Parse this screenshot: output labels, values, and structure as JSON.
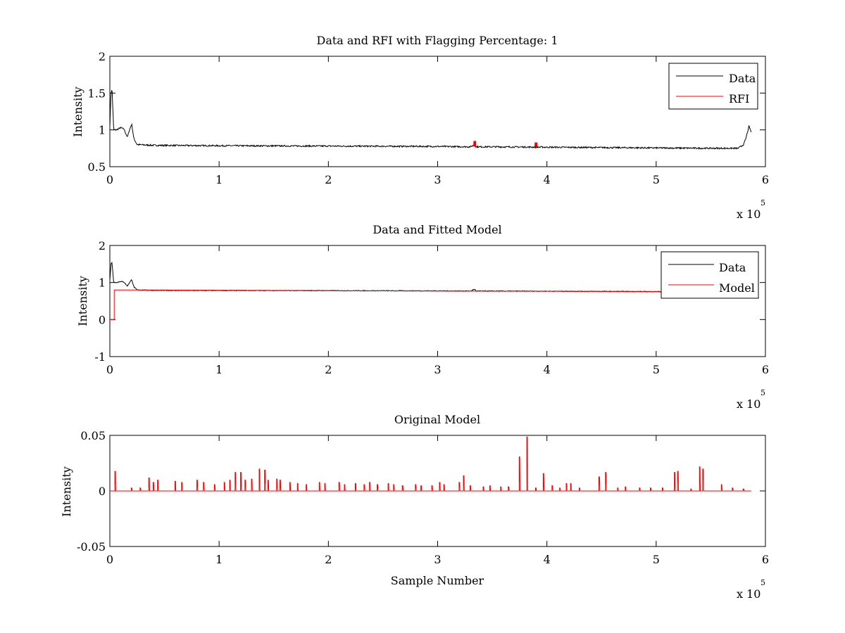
{
  "chart_data": [
    {
      "type": "line",
      "title": "Data and RFI with Flagging Percentage: 1",
      "xlabel": "",
      "ylabel": "Intensity",
      "xlim": [
        0,
        6
      ],
      "ylim": [
        0.5,
        2
      ],
      "x_ticks": [
        "0",
        "1",
        "2",
        "3",
        "4",
        "5",
        "6"
      ],
      "y_ticks": [
        "0.5",
        "1",
        "1.5",
        "2"
      ],
      "x_multiplier": {
        "base": "x 10",
        "exponent": "5"
      },
      "legend_position": "top-right",
      "series": [
        {
          "name": "Data",
          "color": "#000000",
          "x": [
            0,
            0.01,
            0.02,
            0.035,
            0.06,
            0.1,
            0.13,
            0.16,
            0.18,
            0.2,
            0.22,
            0.25,
            0.4,
            1,
            2,
            3,
            3.3,
            3.34,
            3.35,
            3.5,
            4,
            5,
            5.5,
            5.75,
            5.8,
            5.82,
            5.85,
            5.87
          ],
          "y": [
            1.05,
            1.5,
            1.55,
            1.0,
            1.0,
            1.03,
            1.01,
            0.9,
            1.0,
            1.08,
            0.88,
            0.8,
            0.79,
            0.785,
            0.78,
            0.775,
            0.77,
            0.8,
            0.77,
            0.77,
            0.765,
            0.755,
            0.75,
            0.75,
            0.8,
            0.88,
            1.05,
            0.97
          ]
        },
        {
          "name": "RFI",
          "color": "#ff0000",
          "x": [
            3.34,
            3.9
          ],
          "y": [
            0.85,
            0.83
          ]
        }
      ]
    },
    {
      "type": "line",
      "title": "Data and Fitted Model",
      "xlabel": "",
      "ylabel": "Intensity",
      "xlim": [
        0,
        6
      ],
      "ylim": [
        -1,
        2
      ],
      "x_ticks": [
        "0",
        "1",
        "2",
        "3",
        "4",
        "5",
        "6"
      ],
      "y_ticks": [
        "-1",
        "0",
        "1",
        "2"
      ],
      "x_multiplier": {
        "base": "x 10",
        "exponent": "5"
      },
      "legend_position": "top-right",
      "series": [
        {
          "name": "Data",
          "color": "#000000",
          "x": [
            0,
            0.01,
            0.02,
            0.035,
            0.06,
            0.1,
            0.13,
            0.16,
            0.18,
            0.2,
            0.22,
            0.25,
            0.4,
            1,
            2,
            3,
            3.3,
            3.34,
            3.35,
            3.5,
            4,
            5,
            5.3
          ],
          "y": [
            1.05,
            1.5,
            1.55,
            1.0,
            1.0,
            1.03,
            1.01,
            0.9,
            1.0,
            1.08,
            0.88,
            0.8,
            0.79,
            0.785,
            0.78,
            0.775,
            0.77,
            0.82,
            0.77,
            0.77,
            0.765,
            0.755,
            0.75
          ]
        },
        {
          "name": "Model",
          "color": "#ff0000",
          "x": [
            0,
            0.04,
            0.04,
            0.25,
            1,
            2,
            3,
            4,
            5,
            5.3
          ],
          "y": [
            0,
            0,
            0.8,
            0.8,
            0.79,
            0.78,
            0.77,
            0.765,
            0.755,
            0.75
          ]
        }
      ]
    },
    {
      "type": "line",
      "title": "Original Model",
      "xlabel": "Sample Number",
      "ylabel": "Intensity",
      "xlim": [
        0,
        6
      ],
      "ylim": [
        -0.05,
        0.05
      ],
      "x_ticks": [
        "0",
        "1",
        "2",
        "3",
        "4",
        "5",
        "6"
      ],
      "y_ticks": [
        "-0.05",
        "0",
        "0.05"
      ],
      "x_multiplier": {
        "base": "x 10",
        "exponent": "5"
      },
      "series": [
        {
          "name": "",
          "color": "#ff0000",
          "baseline_range": [
            0,
            5.87
          ],
          "spikes_x": [
            0.05,
            0.2,
            0.28,
            0.36,
            0.4,
            0.44,
            0.6,
            0.66,
            0.8,
            0.86,
            0.96,
            1.05,
            1.1,
            1.15,
            1.2,
            1.24,
            1.3,
            1.37,
            1.42,
            1.45,
            1.53,
            1.56,
            1.65,
            1.72,
            1.8,
            1.92,
            1.97,
            2.1,
            2.15,
            2.25,
            2.33,
            2.38,
            2.45,
            2.55,
            2.6,
            2.68,
            2.8,
            2.85,
            2.95,
            3.02,
            3.06,
            3.2,
            3.24,
            3.3,
            3.42,
            3.48,
            3.58,
            3.65,
            3.75,
            3.82,
            3.9,
            3.97,
            4.05,
            4.12,
            4.18,
            4.22,
            4.3,
            4.48,
            4.54,
            4.65,
            4.72,
            4.85,
            4.95,
            5.06,
            5.17,
            5.2,
            5.32,
            5.4,
            5.43,
            5.6,
            5.7,
            5.8
          ],
          "spikes_y": [
            0.018,
            0.003,
            0.003,
            0.012,
            0.008,
            0.01,
            0.009,
            0.008,
            0.01,
            0.008,
            0.006,
            0.008,
            0.01,
            0.017,
            0.017,
            0.01,
            0.011,
            0.02,
            0.019,
            0.01,
            0.011,
            0.01,
            0.008,
            0.007,
            0.006,
            0.008,
            0.007,
            0.008,
            0.006,
            0.007,
            0.006,
            0.008,
            0.006,
            0.007,
            0.006,
            0.005,
            0.006,
            0.005,
            0.005,
            0.008,
            0.006,
            0.008,
            0.014,
            0.005,
            0.004,
            0.005,
            0.004,
            0.004,
            0.031,
            0.049,
            0.003,
            0.016,
            0.005,
            0.003,
            0.007,
            0.007,
            0.003,
            0.013,
            0.017,
            0.003,
            0.004,
            0.003,
            0.003,
            0.003,
            0.017,
            0.018,
            0.002,
            0.022,
            0.02,
            0.006,
            0.003,
            0.002
          ]
        }
      ]
    }
  ]
}
